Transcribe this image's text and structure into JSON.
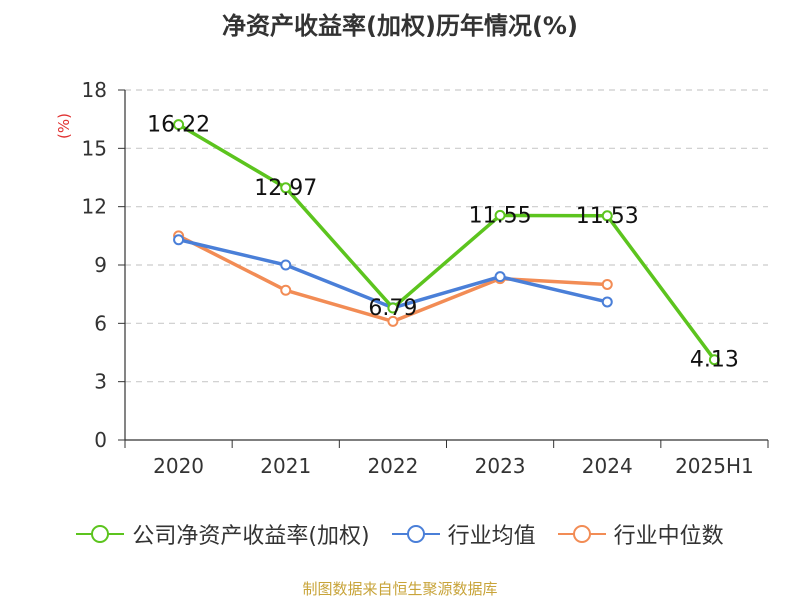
{
  "title": "净资产收益率(加权)历年情况(%)",
  "source": "制图数据来自恒生聚源数据库",
  "colors": {
    "company": "#5cc41e",
    "industry_avg": "#4a7fd8",
    "industry_median": "#f28c55",
    "unit": "#e03030",
    "axis": "#333333",
    "grid": "#cccccc"
  },
  "chart_data": {
    "type": "line",
    "title": "净资产收益率(加权)历年情况(%)",
    "ylabel": "(%)",
    "xlabel": "",
    "categories": [
      "2020",
      "2021",
      "2022",
      "2023",
      "2024",
      "2025H1"
    ],
    "ylim": [
      0,
      18
    ],
    "yticks": [
      0,
      3,
      6,
      9,
      12,
      15,
      18
    ],
    "grid": true,
    "legend_position": "bottom",
    "series": [
      {
        "name": "公司净资产收益率(加权)",
        "values": [
          16.22,
          12.97,
          6.79,
          11.55,
          11.53,
          4.13
        ],
        "labels": [
          "16.22",
          "12.97",
          "6.79",
          "11.55",
          "11.53",
          "4.13"
        ]
      },
      {
        "name": "行业均值",
        "values": [
          10.3,
          9.0,
          6.8,
          8.4,
          7.1,
          null
        ]
      },
      {
        "name": "行业中位数",
        "values": [
          10.5,
          7.7,
          6.1,
          8.3,
          8.0,
          null
        ]
      }
    ]
  }
}
